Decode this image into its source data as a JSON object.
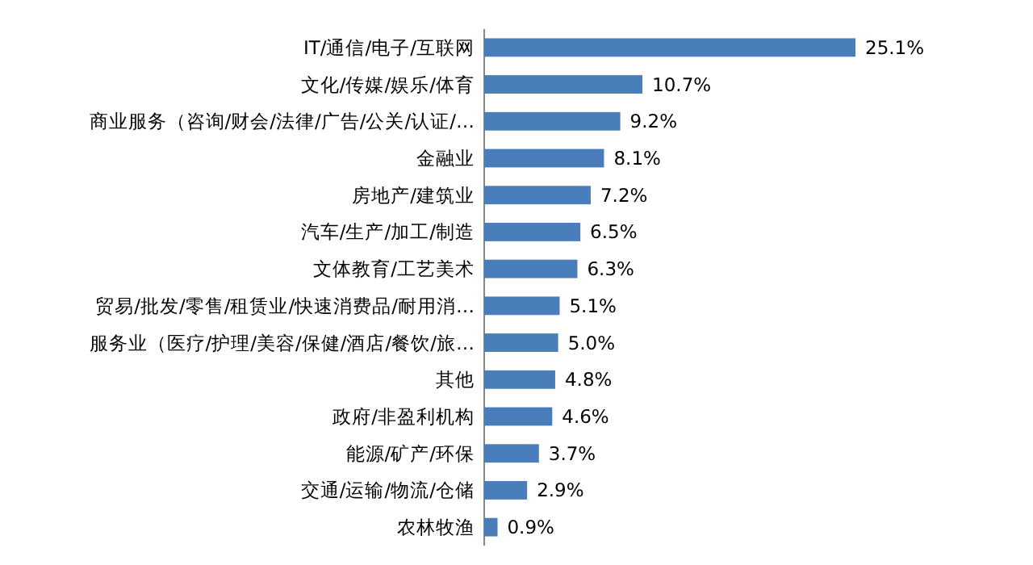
{
  "chart_data": {
    "type": "bar",
    "orientation": "horizontal",
    "categories": [
      "IT/通信/电子/互联网",
      "文化/传媒/娱乐/体育",
      "商业服务（咨询/财会/法律/广告/公关/认证/…",
      "金融业",
      "房地产/建筑业",
      "汽车/生产/加工/制造",
      "文体教育/工艺美术",
      "贸易/批发/零售/租赁业/快速消费品/耐用消…",
      "服务业（医疗/护理/美容/保健/酒店/餐饮/旅…",
      "其他",
      "政府/非盈利机构",
      "能源/矿产/环保",
      "交通/运输/物流/仓储",
      "农林牧渔"
    ],
    "values": [
      25.1,
      10.7,
      9.2,
      8.1,
      7.2,
      6.5,
      6.3,
      5.1,
      5.0,
      4.8,
      4.6,
      3.7,
      2.9,
      0.9
    ],
    "value_labels": [
      "25.1%",
      "10.7%",
      "9.2%",
      "8.1%",
      "7.2%",
      "6.5%",
      "6.3%",
      "5.1%",
      "5.0%",
      "4.8%",
      "4.6%",
      "3.7%",
      "2.9%",
      "0.9%"
    ],
    "color": "#4a7ebb"
  }
}
